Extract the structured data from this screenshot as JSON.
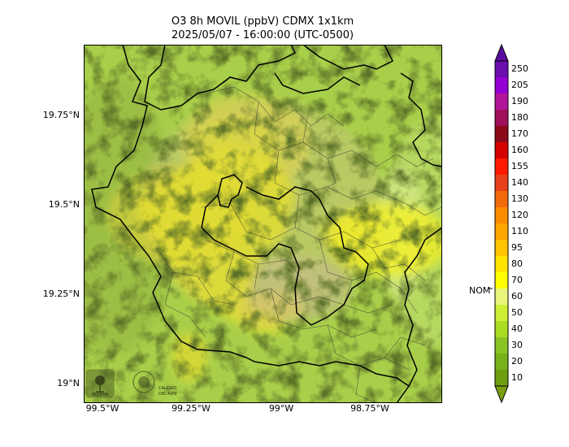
{
  "title": {
    "line1": "O3 8h MOVIL (ppbV) CDMX 1x1km",
    "line2": "2025/05/07 - 16:00:00 (UTC-0500)"
  },
  "map": {
    "lat_labels": [
      "19.75°N",
      "19.5°N",
      "19.25°N",
      "19°N"
    ],
    "lon_labels": [
      "99.5°W",
      "99.25°W",
      "99°W",
      "98.75°W"
    ],
    "logos": [
      "SEDEMA",
      "CALIDAD DEL AIRE"
    ]
  },
  "colorbar": {
    "labels": [
      "250",
      "205",
      "190",
      "180",
      "170",
      "160",
      "155",
      "140",
      "130",
      "120",
      "110",
      "95",
      "80",
      "70",
      "60",
      "50",
      "40",
      "30",
      "20",
      "10"
    ],
    "colors": [
      "#6a0dad",
      "#9400d3",
      "#b2139a",
      "#a0105a",
      "#8b0a1a",
      "#d40000",
      "#ff1a00",
      "#e8401a",
      "#f26a0a",
      "#fb8c00",
      "#ffa500",
      "#ffc400",
      "#ffe400",
      "#ffff00",
      "#e8f57a",
      "#ccee33",
      "#aadc22",
      "#88c422",
      "#77b21a",
      "#6e9e10"
    ],
    "nom_label": "NOM",
    "nom_value": 65
  }
}
